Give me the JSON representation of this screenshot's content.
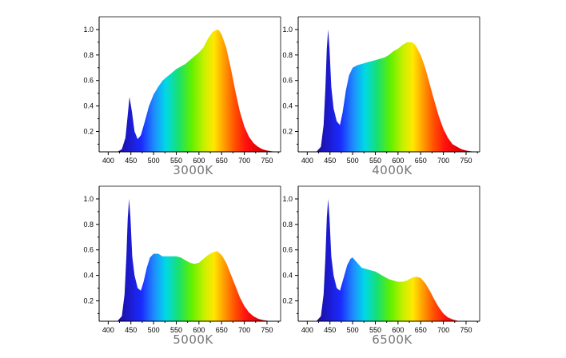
{
  "chart_data": [
    {
      "type": "area",
      "title": "3000K",
      "x_ticks": [
        400,
        450,
        500,
        550,
        600,
        650,
        700,
        750
      ],
      "y_ticks": [
        0.2,
        0.4,
        0.6,
        0.8,
        1.0
      ],
      "xlim": [
        380,
        780
      ],
      "ylim": [
        0.04,
        1.1
      ],
      "x": [
        420,
        430,
        438,
        443,
        447,
        452,
        458,
        465,
        472,
        480,
        490,
        500,
        510,
        520,
        530,
        540,
        550,
        560,
        570,
        580,
        590,
        600,
        610,
        620,
        630,
        640,
        645,
        650,
        660,
        670,
        680,
        690,
        700,
        710,
        720,
        730,
        740,
        750,
        760,
        770
      ],
      "y": [
        0.04,
        0.06,
        0.15,
        0.33,
        0.47,
        0.36,
        0.2,
        0.14,
        0.17,
        0.27,
        0.4,
        0.49,
        0.55,
        0.6,
        0.63,
        0.66,
        0.69,
        0.71,
        0.73,
        0.76,
        0.79,
        0.82,
        0.86,
        0.93,
        0.98,
        1.0,
        0.99,
        0.96,
        0.86,
        0.7,
        0.52,
        0.36,
        0.24,
        0.16,
        0.11,
        0.08,
        0.06,
        0.05,
        0.045,
        0.04
      ]
    },
    {
      "type": "area",
      "title": "4000K",
      "x_ticks": [
        400,
        450,
        500,
        550,
        600,
        650,
        700,
        750
      ],
      "y_ticks": [
        0.2,
        0.4,
        0.6,
        0.8,
        1.0
      ],
      "xlim": [
        380,
        780
      ],
      "ylim": [
        0.04,
        1.1
      ],
      "x": [
        420,
        430,
        436,
        440,
        443,
        446,
        449,
        453,
        458,
        465,
        472,
        478,
        485,
        492,
        500,
        510,
        520,
        530,
        540,
        550,
        560,
        570,
        580,
        590,
        600,
        610,
        620,
        630,
        635,
        640,
        650,
        660,
        670,
        680,
        690,
        700,
        710,
        720,
        730,
        740,
        750,
        760,
        770
      ],
      "y": [
        0.04,
        0.08,
        0.25,
        0.55,
        0.85,
        1.0,
        0.85,
        0.55,
        0.38,
        0.28,
        0.25,
        0.35,
        0.52,
        0.64,
        0.7,
        0.72,
        0.73,
        0.74,
        0.75,
        0.76,
        0.77,
        0.78,
        0.8,
        0.83,
        0.85,
        0.88,
        0.9,
        0.9,
        0.89,
        0.87,
        0.8,
        0.7,
        0.57,
        0.44,
        0.32,
        0.22,
        0.15,
        0.1,
        0.08,
        0.06,
        0.05,
        0.045,
        0.04
      ]
    },
    {
      "type": "area",
      "title": "5000K",
      "x_ticks": [
        400,
        450,
        500,
        550,
        600,
        650,
        700,
        750
      ],
      "y_ticks": [
        0.2,
        0.4,
        0.6,
        0.8,
        1.0
      ],
      "xlim": [
        380,
        780
      ],
      "ylim": [
        0.04,
        1.1
      ],
      "x": [
        420,
        430,
        436,
        440,
        443,
        446,
        449,
        453,
        458,
        465,
        472,
        478,
        485,
        492,
        500,
        510,
        520,
        530,
        540,
        550,
        560,
        570,
        580,
        590,
        600,
        610,
        620,
        630,
        640,
        650,
        660,
        670,
        680,
        690,
        700,
        710,
        720,
        730,
        740,
        750,
        760,
        770
      ],
      "y": [
        0.04,
        0.08,
        0.25,
        0.55,
        0.85,
        1.0,
        0.85,
        0.55,
        0.4,
        0.3,
        0.28,
        0.35,
        0.46,
        0.54,
        0.57,
        0.57,
        0.55,
        0.55,
        0.55,
        0.55,
        0.54,
        0.52,
        0.5,
        0.49,
        0.5,
        0.53,
        0.56,
        0.58,
        0.59,
        0.56,
        0.5,
        0.41,
        0.32,
        0.23,
        0.16,
        0.11,
        0.08,
        0.06,
        0.05,
        0.045,
        0.04,
        0.04
      ]
    },
    {
      "type": "area",
      "title": "6500K",
      "x_ticks": [
        400,
        450,
        500,
        550,
        600,
        650,
        700,
        750
      ],
      "y_ticks": [
        0.2,
        0.4,
        0.6,
        0.8,
        1.0
      ],
      "xlim": [
        380,
        780
      ],
      "ylim": [
        0.04,
        1.1
      ],
      "x": [
        420,
        430,
        436,
        440,
        443,
        446,
        449,
        453,
        458,
        465,
        472,
        480,
        488,
        495,
        500,
        510,
        520,
        530,
        540,
        550,
        560,
        570,
        580,
        590,
        600,
        610,
        620,
        630,
        640,
        650,
        660,
        670,
        680,
        690,
        700,
        710,
        720,
        730,
        740,
        750,
        760,
        770
      ],
      "y": [
        0.04,
        0.08,
        0.25,
        0.55,
        0.85,
        1.0,
        0.85,
        0.55,
        0.4,
        0.3,
        0.28,
        0.38,
        0.48,
        0.53,
        0.54,
        0.5,
        0.46,
        0.45,
        0.44,
        0.43,
        0.41,
        0.39,
        0.37,
        0.36,
        0.35,
        0.35,
        0.36,
        0.38,
        0.39,
        0.38,
        0.34,
        0.28,
        0.21,
        0.15,
        0.1,
        0.07,
        0.055,
        0.045,
        0.04,
        0.04,
        0.04,
        0.04
      ]
    }
  ]
}
